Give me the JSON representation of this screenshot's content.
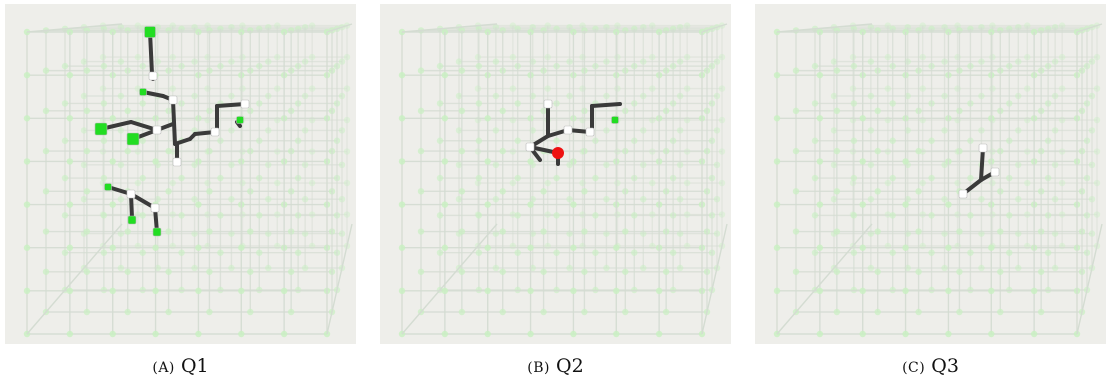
{
  "panels": [
    {
      "tag": "(A)",
      "label": "Q1"
    },
    {
      "tag": "(B)",
      "label": "Q2"
    },
    {
      "tag": "(C)",
      "label": "Q3"
    }
  ],
  "colors": {
    "background": "#eeeeea",
    "grid": "#d4dcd2",
    "grid_node": "#c9f0c2",
    "path_edge": "#3a3a3a",
    "node_white": "#ffffff",
    "node_green": "#22dd22",
    "node_red": "#ee1111"
  }
}
